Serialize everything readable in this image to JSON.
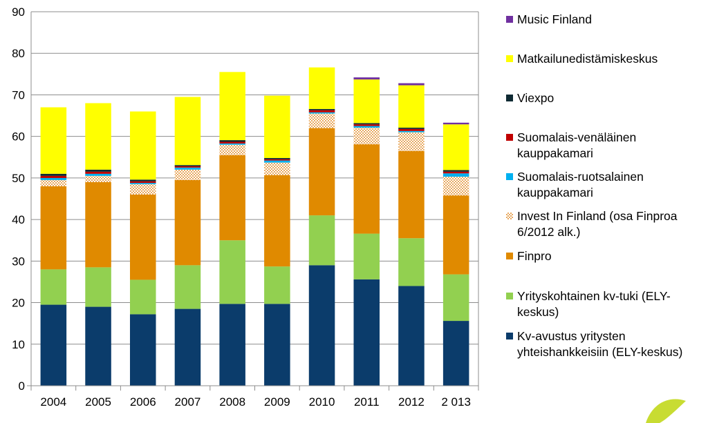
{
  "chart_data": {
    "type": "bar",
    "stacked": true,
    "categories": [
      "2004",
      "2005",
      "2006",
      "2007",
      "2008",
      "2009",
      "2010",
      "2011",
      "2012",
      "2 013"
    ],
    "ylim": [
      0,
      90
    ],
    "yticks": [
      0,
      10,
      20,
      30,
      40,
      50,
      60,
      70,
      80,
      90
    ],
    "grid": true,
    "legend_position": "right",
    "series": [
      {
        "name": "Kv-avustus yritysten yhteishankkeisiin (ELY-keskus)",
        "color": "#0b3c6b",
        "values": [
          19.5,
          19.0,
          17.2,
          18.5,
          19.7,
          19.7,
          29.0,
          25.6,
          24.0,
          15.6
        ]
      },
      {
        "name": "Yrityskohtainen kv-tuki (ELY-keskus)",
        "color": "#92d050",
        "values": [
          8.5,
          9.5,
          8.3,
          10.5,
          15.3,
          9.0,
          12.0,
          11.0,
          11.5,
          11.2
        ]
      },
      {
        "name": "Finpro",
        "color": "#e08a00",
        "values": [
          20.0,
          20.5,
          20.5,
          20.5,
          20.5,
          22.0,
          21.0,
          21.5,
          21.0,
          19.0
        ]
      },
      {
        "name": "Invest In Finland (osa Finproa 6/2012 alk.)",
        "color": "#f3c99a",
        "pattern": true,
        "values": [
          1.5,
          1.5,
          2.5,
          2.5,
          2.5,
          3.0,
          3.5,
          4.0,
          4.5,
          4.5
        ]
      },
      {
        "name": "Suomalais-ruotsalainen kauppakamari",
        "color": "#00b0f0",
        "values": [
          0.5,
          0.5,
          0.3,
          0.5,
          0.3,
          0.5,
          0.3,
          0.4,
          0.3,
          0.8
        ]
      },
      {
        "name": "Suomalais-venäläinen kauppakamari",
        "color": "#c00000",
        "values": [
          0.5,
          0.5,
          0.4,
          0.3,
          0.4,
          0.3,
          0.5,
          0.4,
          0.5,
          0.4
        ]
      },
      {
        "name": "Viexpo",
        "color": "#0f2a33",
        "values": [
          0.5,
          0.5,
          0.4,
          0.3,
          0.4,
          0.3,
          0.3,
          0.3,
          0.3,
          0.4
        ]
      },
      {
        "name": "Matkailunedistämiskeskus",
        "color": "#ffff00",
        "values": [
          16.0,
          16.0,
          16.4,
          16.4,
          16.4,
          15.0,
          10.0,
          10.5,
          10.2,
          11.0
        ]
      },
      {
        "name": "Music Finland",
        "color": "#7030a0",
        "values": [
          0.0,
          0.0,
          0.0,
          0.0,
          0.0,
          0.0,
          0.0,
          0.5,
          0.5,
          0.4
        ]
      }
    ],
    "legend_order": [
      "Music Finland",
      "Matkailunedistämiskeskus",
      "Viexpo",
      "Suomalais-venäläinen kauppakamari",
      "Suomalais-ruotsalainen kauppakamari",
      "Invest In Finland (osa Finproa 6/2012 alk.)",
      "Finpro",
      "Yrityskohtainen kv-tuki (ELY-keskus)",
      "Kv-avustus yritysten yhteishankkeisiin (ELY-keskus)"
    ],
    "decoration_color": "#c8dc32"
  }
}
